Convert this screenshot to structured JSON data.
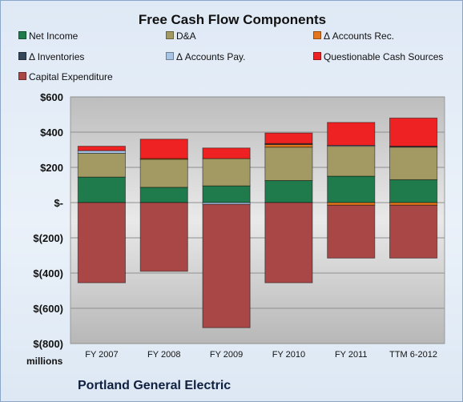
{
  "chart_data": {
    "type": "bar",
    "stacked": true,
    "title": "Free Cash Flow Components",
    "categories": [
      "FY 2007",
      "FY 2008",
      "FY 2009",
      "FY 2010",
      "FY 2011",
      "TTM 6-2012"
    ],
    "series": [
      {
        "name": "Net Income",
        "color": "#1f7a4c",
        "values": [
          145,
          87,
          95,
          125,
          150,
          130
        ]
      },
      {
        "name": "D&A",
        "color": "#a39a63",
        "values": [
          135,
          160,
          155,
          190,
          170,
          185
        ]
      },
      {
        "name": "Δ Accounts Rec.",
        "color": "#e3751c",
        "values": [
          0,
          3,
          0,
          15,
          -15,
          -15
        ]
      },
      {
        "name": "Δ Inventories",
        "color": "#34465a",
        "values": [
          0,
          0,
          0,
          5,
          0,
          5
        ]
      },
      {
        "name": "Δ Accounts Pay.",
        "color": "#a8c4e4",
        "values": [
          15,
          0,
          -10,
          0,
          5,
          0
        ]
      },
      {
        "name": "Questionable Cash Sources",
        "color": "#ee2222",
        "values": [
          25,
          110,
          60,
          60,
          130,
          160
        ]
      },
      {
        "name": "Capital Expenditure",
        "color": "#a94747",
        "values": [
          -455,
          -390,
          -700,
          -455,
          -300,
          -300
        ]
      }
    ],
    "ylim": [
      -800,
      600
    ],
    "yticks": [
      "$600",
      "$400",
      "$200",
      "$-",
      "$(200)",
      "$(400)",
      "$(600)",
      "$(800)"
    ],
    "ylabel": "millions",
    "grid": true,
    "legend": "top"
  },
  "company": "Portland General Electric"
}
